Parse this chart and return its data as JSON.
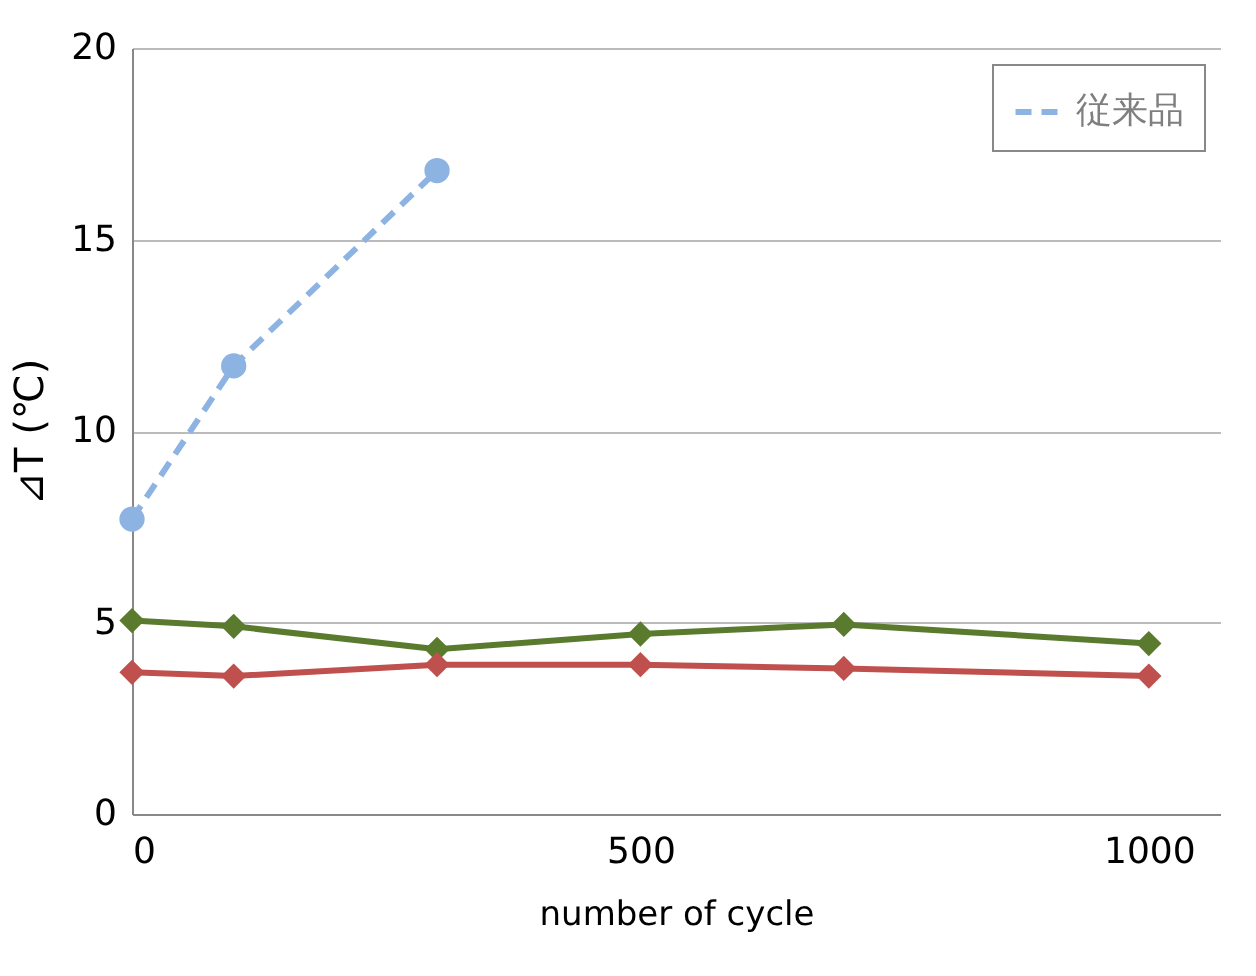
{
  "chart_data": {
    "type": "line",
    "xlabel": "number of cycle",
    "ylabel": "⊿T (℃)",
    "xlim": [
      0,
      1070
    ],
    "xticks": [
      0,
      500,
      1000
    ],
    "ylim": [
      0,
      20
    ],
    "yticks": [
      0,
      5,
      10,
      15,
      20
    ],
    "grid": "y",
    "legend": "top right",
    "series": [
      {
        "color": "#5a7a2e",
        "marker": "diamond",
        "line_style": "solid",
        "x": [
          0,
          100,
          300,
          500,
          700,
          1000
        ],
        "values": [
          5.05,
          4.9,
          4.3,
          4.7,
          4.95,
          4.45
        ]
      },
      {
        "color": "#c0504d",
        "marker": "diamond",
        "line_style": "solid",
        "x": [
          0,
          100,
          300,
          500,
          700,
          1000
        ],
        "values": [
          3.7,
          3.6,
          3.9,
          3.9,
          3.8,
          3.6
        ]
      },
      {
        "name": "従来品",
        "color": "#8db3e2",
        "marker": "circle",
        "line_style": "dashed",
        "x": [
          0,
          100,
          300
        ],
        "values": [
          7.7,
          11.7,
          16.8
        ]
      }
    ]
  }
}
